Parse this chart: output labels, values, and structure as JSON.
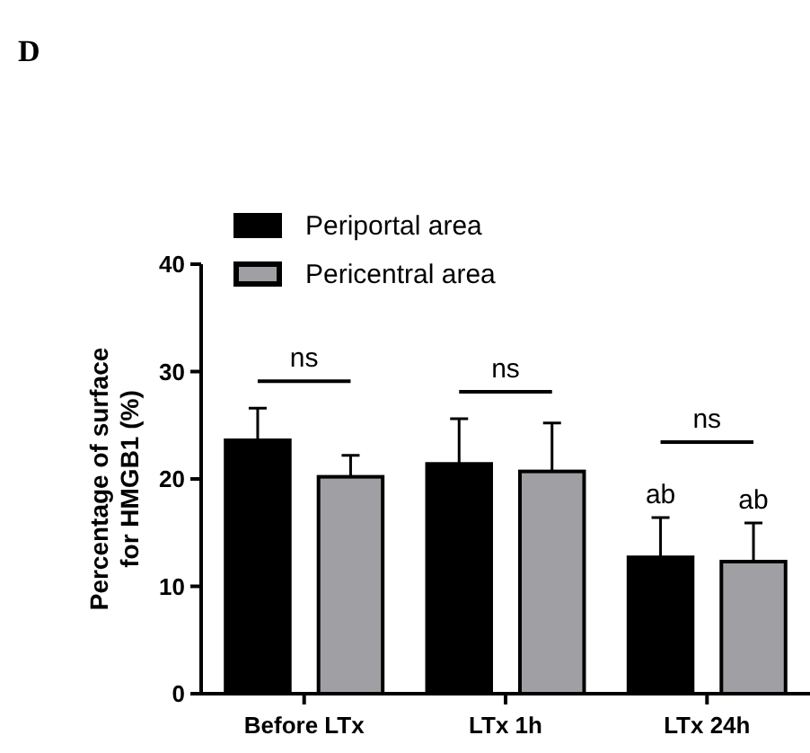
{
  "chart_data": {
    "type": "bar",
    "title": "D",
    "ylabel": "Percentage of surface\nfor HMGB1 (%)",
    "categories": [
      "Before LTx",
      "LTx 1h",
      "LTx 24h"
    ],
    "series": [
      {
        "name": "Periportal area",
        "color": "#000000",
        "values": [
          23.6,
          21.4,
          12.7
        ],
        "errors": [
          [
            23.6,
            26.6
          ],
          [
            21.4,
            25.6
          ],
          [
            12.7,
            16.4
          ]
        ]
      },
      {
        "name": "Pericentral area",
        "color": "#a0a0a4",
        "values": [
          20.2,
          20.7,
          12.3
        ],
        "errors": [
          [
            20.2,
            22.2
          ],
          [
            20.7,
            25.2
          ],
          [
            12.3,
            15.9
          ]
        ]
      }
    ],
    "ylim": [
      0,
      40
    ],
    "yticks": [
      0,
      10,
      20,
      30,
      40
    ],
    "grid": false,
    "legend": "top left",
    "annotations": [
      "ns",
      "ns",
      "ns",
      "ab",
      "ab"
    ]
  }
}
